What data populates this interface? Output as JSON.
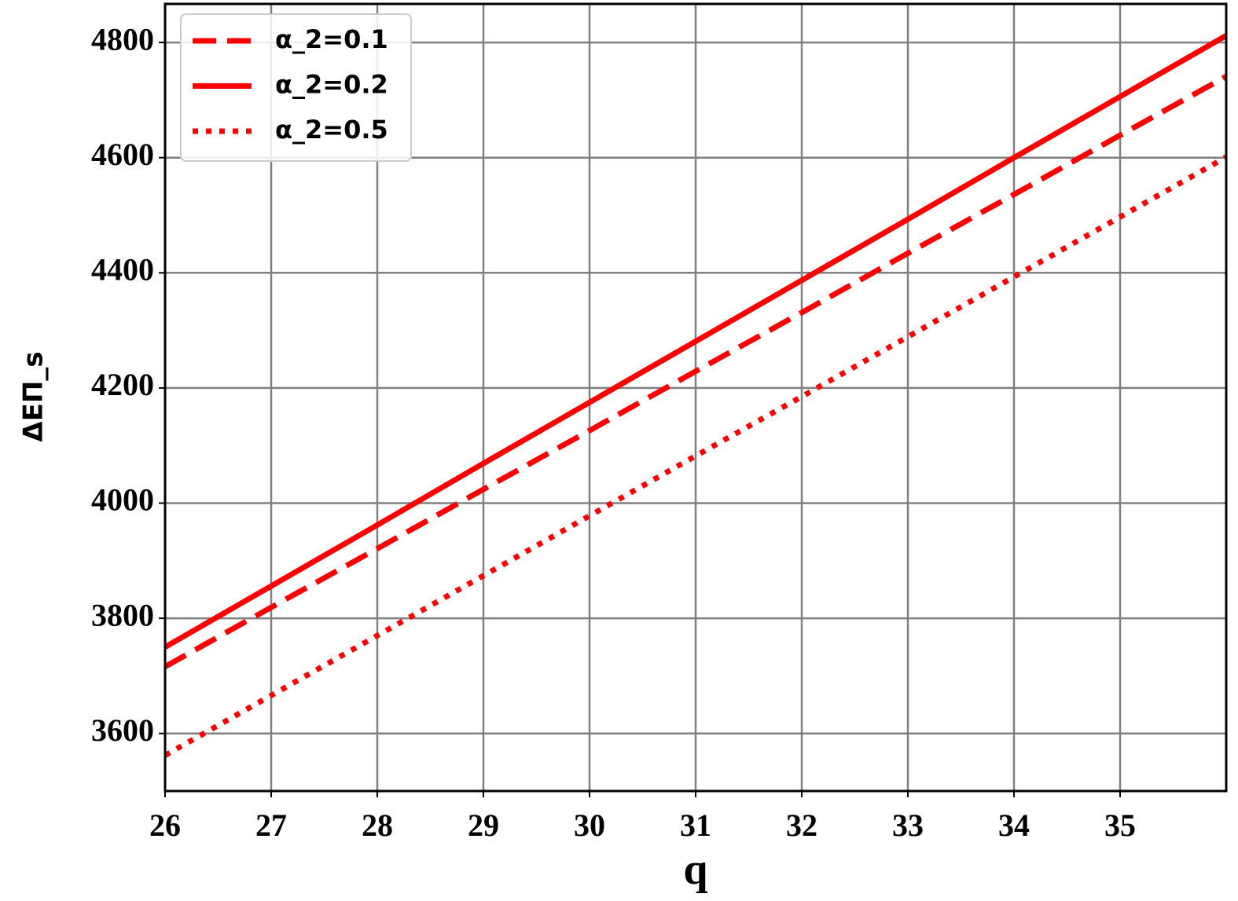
{
  "chart_data": {
    "type": "line",
    "x_label": "q",
    "y_label": "ΔEΠ_s",
    "x": [
      26,
      27,
      28,
      29,
      30,
      31,
      32,
      33,
      34,
      35,
      36
    ],
    "series": [
      {
        "name": "α_2=0.1",
        "color": "#ff0000",
        "style": "dashed",
        "values": [
          3716,
          3819,
          3921,
          4024,
          4126,
          4229,
          4331,
          4434,
          4536,
          4639,
          4741
        ]
      },
      {
        "name": "α_2=0.2",
        "color": "#ff0000",
        "style": "solid",
        "values": [
          3750,
          3856,
          3962,
          4069,
          4175,
          4281,
          4387,
          4493,
          4600,
          4706,
          4812
        ]
      },
      {
        "name": "α_2=0.5",
        "color": "#ff0000",
        "style": "dotted",
        "values": [
          3562,
          3666,
          3770,
          3874,
          3978,
          4082,
          4185,
          4289,
          4393,
          4497,
          4601
        ]
      }
    ],
    "xlim": [
      26,
      36
    ],
    "ylim": [
      3500,
      4867
    ],
    "xticks": [
      26,
      27,
      28,
      29,
      30,
      31,
      32,
      33,
      34,
      35
    ],
    "yticks": [
      3600,
      3800,
      4000,
      4200,
      4400,
      4600,
      4800
    ],
    "grid": true,
    "legend": "upper left"
  }
}
